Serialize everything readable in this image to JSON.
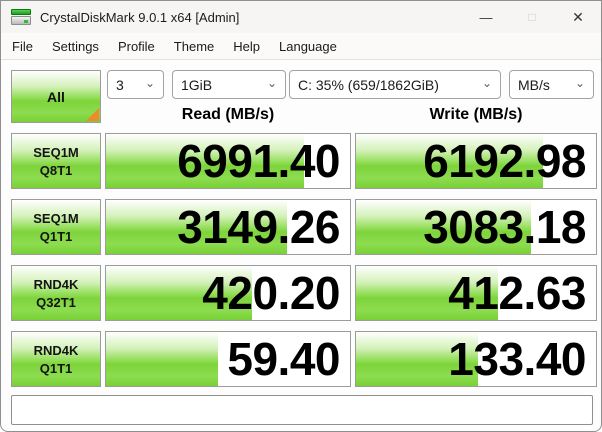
{
  "window": {
    "title": "CrystalDiskMark 9.0.1 x64 [Admin]",
    "controls": {
      "minimize": "—",
      "maximize": "□",
      "close": "✕"
    }
  },
  "menu": {
    "items": [
      "File",
      "Settings",
      "Profile",
      "Theme",
      "Help",
      "Language"
    ]
  },
  "toolbar": {
    "all_label": "All",
    "test_count": "3",
    "test_size": "1GiB",
    "target_drive": "C: 35% (659/1862GiB)",
    "unit": "MB/s"
  },
  "columns": {
    "read": "Read (MB/s)",
    "write": "Write (MB/s)"
  },
  "icons": {
    "chevron": "⌄"
  },
  "chart_data": {
    "type": "bar",
    "title": "CrystalDiskMark results (MB/s)",
    "categories": [
      "SEQ1M Q8T1",
      "SEQ1M Q1T1",
      "RND4K Q32T1",
      "RND4K Q1T1"
    ],
    "series": [
      {
        "name": "Read (MB/s)",
        "values": [
          6991.4,
          3149.26,
          420.2,
          59.4
        ]
      },
      {
        "name": "Write (MB/s)",
        "values": [
          6192.98,
          3083.18,
          412.63,
          133.4
        ]
      }
    ]
  },
  "benchmark": {
    "rows": [
      {
        "label": [
          "SEQ1M",
          "Q8T1"
        ],
        "read": "6991.40",
        "write": "6192.98",
        "read_fill_pct": 81,
        "write_fill_pct": 78
      },
      {
        "label": [
          "SEQ1M",
          "Q1T1"
        ],
        "read": "3149.26",
        "write": "3083.18",
        "read_fill_pct": 74,
        "write_fill_pct": 73
      },
      {
        "label": [
          "RND4K",
          "Q32T1"
        ],
        "read": "420.20",
        "write": "412.63",
        "read_fill_pct": 60,
        "write_fill_pct": 59
      },
      {
        "label": [
          "RND4K",
          "Q1T1"
        ],
        "read": "59.40",
        "write": "133.40",
        "read_fill_pct": 46,
        "write_fill_pct": 51
      }
    ]
  },
  "comment": {
    "value": "",
    "placeholder": ""
  },
  "colors": {
    "grad-top": "#ffffff",
    "grad-upper": "#d4f1ba",
    "grad-mid": "#8ddc50",
    "grad-mid2": "#7ed43c",
    "grad-bottom": "#79d135",
    "orange": "#ee8a2c",
    "cell-border": "#9c9c9c",
    "combo-border": "#a3a3a3",
    "frame": "#8f8f8f",
    "text": "#1b1b1b"
  }
}
